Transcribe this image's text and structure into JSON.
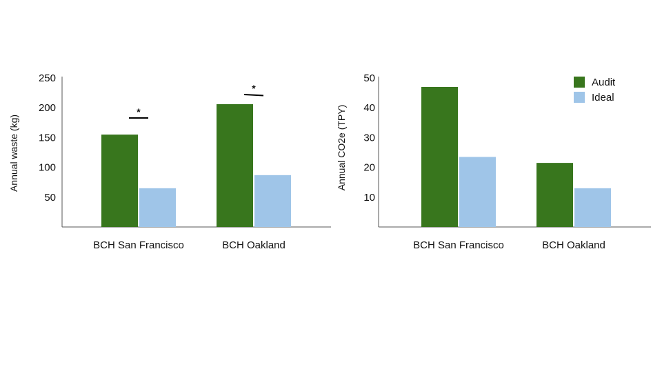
{
  "colors": {
    "audit": "#38761d",
    "ideal": "#9fc5e8",
    "axis": "#555555",
    "text": "#111111"
  },
  "legend": {
    "placement": "top-right of right chart",
    "items": [
      {
        "label": "Audit",
        "color": "#38761d"
      },
      {
        "label": "Ideal",
        "color": "#9fc5e8"
      }
    ]
  },
  "chart_data": [
    {
      "type": "bar",
      "title": "",
      "xlabel": "",
      "ylabel": "Annual waste (kg)",
      "categories": [
        "BCH San Francisco",
        "BCH Oakland"
      ],
      "series": [
        {
          "name": "Audit",
          "values": [
            155,
            206
          ]
        },
        {
          "name": "Ideal",
          "values": [
            65,
            87
          ]
        }
      ],
      "yticks": [
        "50",
        "100",
        "150",
        "200",
        "250"
      ],
      "ylim": [
        0,
        250
      ],
      "grid": false,
      "annotations": [
        {
          "text": "*",
          "category": "BCH San Francisco"
        },
        {
          "text": "*",
          "category": "BCH Oakland"
        }
      ]
    },
    {
      "type": "bar",
      "title": "",
      "xlabel": "",
      "ylabel": "Annual CO2e (TPY)",
      "categories": [
        "BCH San Francisco",
        "BCH Oakland"
      ],
      "series": [
        {
          "name": "Audit",
          "values": [
            47,
            21.5
          ]
        },
        {
          "name": "Ideal",
          "values": [
            23.5,
            13
          ]
        }
      ],
      "yticks": [
        "10",
        "20",
        "30",
        "40",
        "50"
      ],
      "ylim": [
        0,
        50
      ],
      "grid": false,
      "annotations": []
    }
  ]
}
